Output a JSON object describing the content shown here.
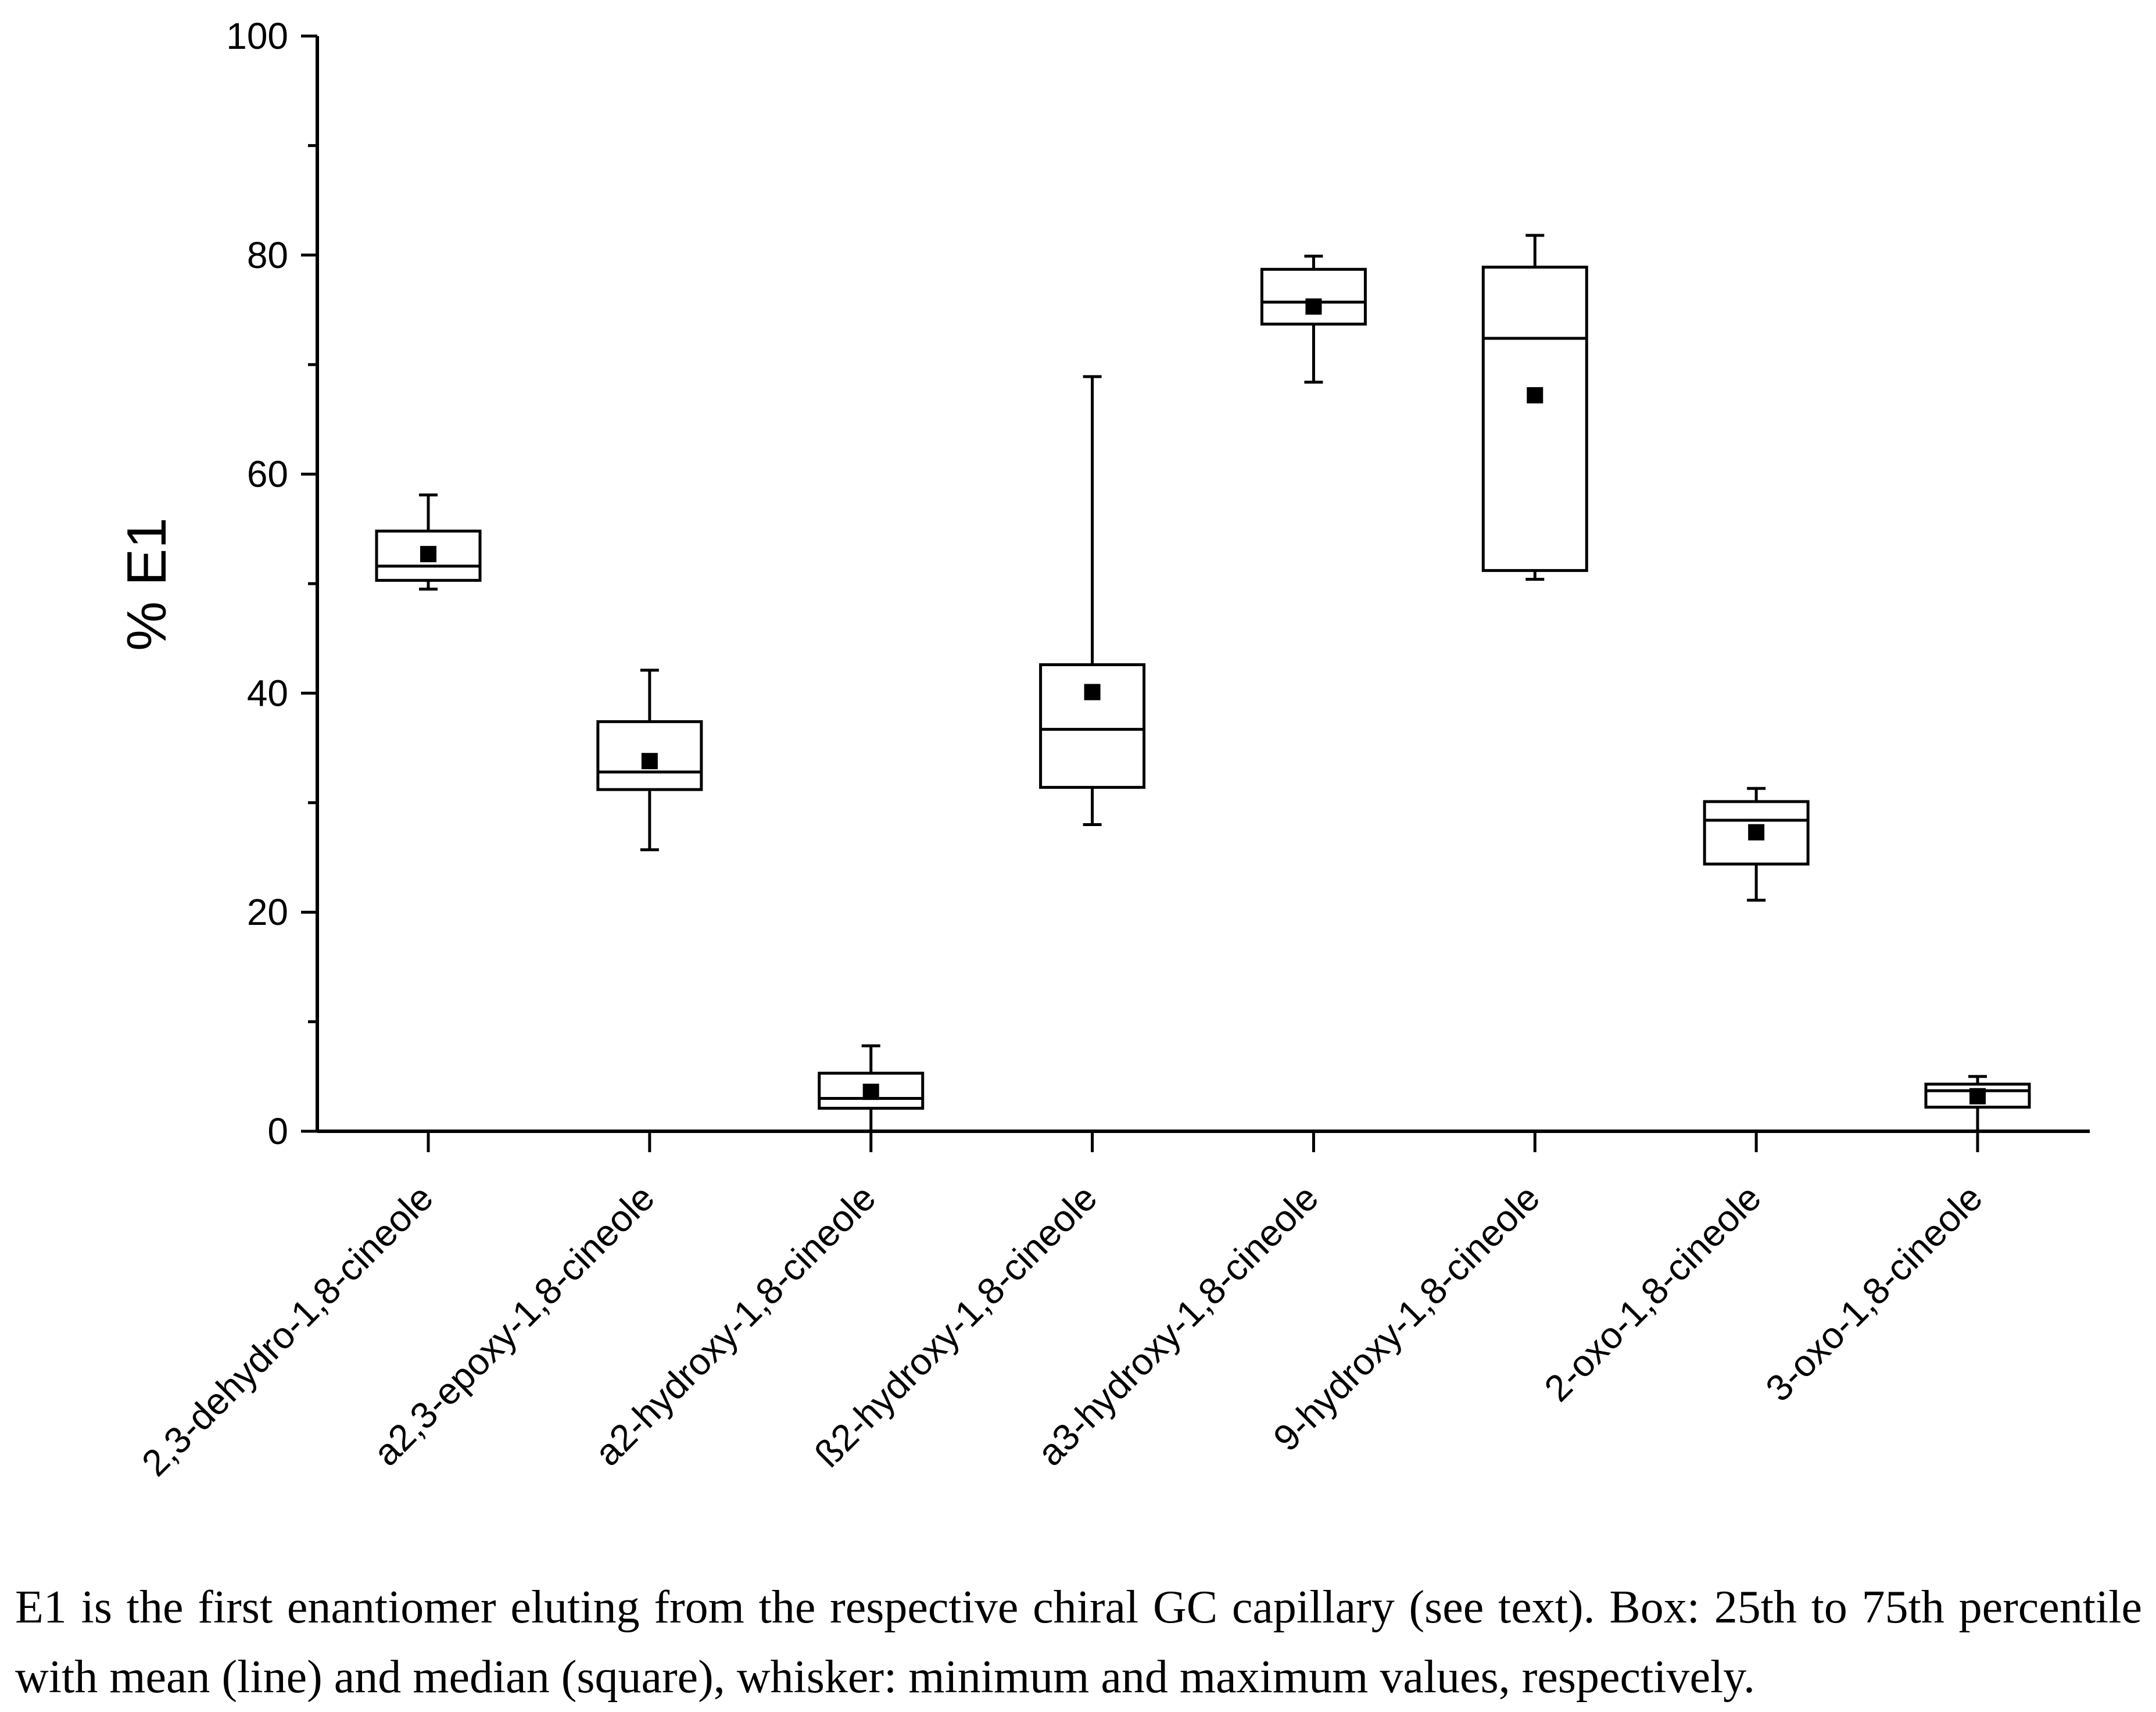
{
  "chart_data": {
    "type": "box",
    "ylabel": "% E1",
    "xlabel": "",
    "ylim": [
      0,
      100
    ],
    "yticks": [
      0,
      20,
      40,
      60,
      80,
      100
    ],
    "y_minor_step": 10,
    "categories": [
      "2,3-dehydro-1,8-cineole",
      "a2,3-epoxy-1,8-cineole",
      "a2-hydroxy-1,8-cineole",
      "ß2-hydroxy-1,8-cineole",
      "a3-hydroxy-1,8-cineole",
      "9-hydroxy-1,8-cineole",
      "2-oxo-1,8-cineole",
      "3-oxo-1,8-cineole"
    ],
    "series": [
      {
        "category": "2,3-dehydro-1,8-cineole",
        "min": 49.5,
        "q1": 50.3,
        "line": 51.6,
        "q3": 54.8,
        "max": 58.1,
        "square": 52.7
      },
      {
        "category": "a2,3-epoxy-1,8-cineole",
        "min": 25.7,
        "q1": 31.2,
        "line": 32.8,
        "q3": 37.4,
        "max": 42.1,
        "square": 33.8
      },
      {
        "category": "a2-hydroxy-1,8-cineole",
        "min": 0.0,
        "q1": 2.1,
        "line": 3.0,
        "q3": 5.3,
        "max": 7.8,
        "square": 3.6
      },
      {
        "category": "ß2-hydroxy-1,8-cineole",
        "min": 28.0,
        "q1": 31.4,
        "line": 36.7,
        "q3": 42.6,
        "max": 68.9,
        "square": 40.1
      },
      {
        "category": "a3-hydroxy-1,8-cineole",
        "min": 68.4,
        "q1": 73.7,
        "line": 75.7,
        "q3": 78.7,
        "max": 79.9,
        "square": 75.3
      },
      {
        "category": "9-hydroxy-1,8-cineole",
        "min": 50.4,
        "q1": 51.2,
        "line": 72.4,
        "q3": 78.9,
        "max": 81.8,
        "square": 67.2
      },
      {
        "category": "2-oxo-1,8-cineole",
        "min": 21.1,
        "q1": 24.4,
        "line": 28.4,
        "q3": 30.1,
        "max": 31.3,
        "square": 27.3
      },
      {
        "category": "3-oxo-1,8-cineole",
        "min": 0.0,
        "q1": 2.2,
        "line": 3.7,
        "q3": 4.3,
        "max": 5.0,
        "square": 3.2
      }
    ]
  },
  "caption": "E1 is the first enantiomer eluting from the respective chiral GC capillary (see text). Box: 25th to 75th percentile with mean (line) and median (square), whisker: minimum and maximum values, respectively."
}
